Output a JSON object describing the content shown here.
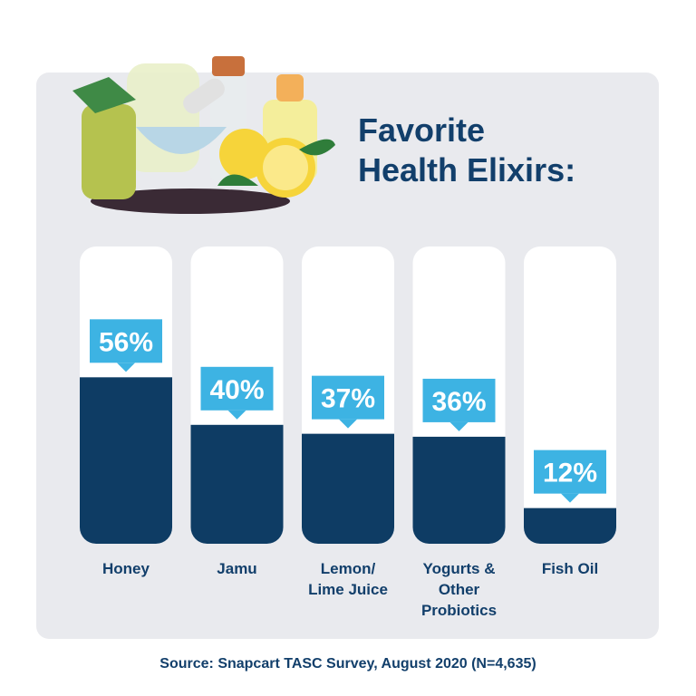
{
  "chart_data": {
    "type": "bar",
    "title": "Favorite\nHealth Elixirs:",
    "categories": [
      "Honey",
      "Jamu",
      "Lemon/\nLime Juice",
      "Yogurts &\nOther\nProbiotics",
      "Fish Oil"
    ],
    "values": [
      56,
      40,
      37,
      36,
      12
    ],
    "value_labels": [
      "56%",
      "40%",
      "37%",
      "36%",
      "12%"
    ],
    "color": "#0e3c64",
    "label_color": "#3db3e3",
    "ylim": [
      0,
      100
    ],
    "source": "Source: Snapcart TASC Survey, August 2020 (N=4,635)"
  }
}
